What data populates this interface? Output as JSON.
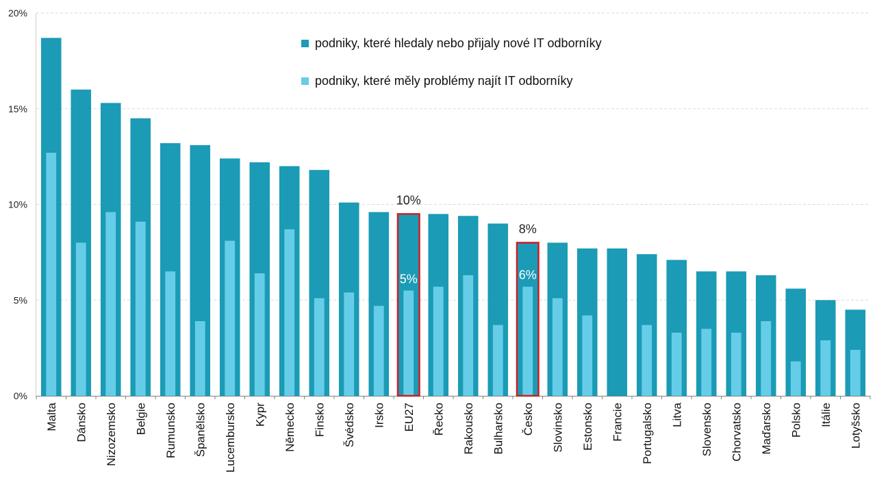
{
  "chart_data": {
    "type": "bar",
    "categories": [
      "Malta",
      "Dánsko",
      "Nizozemsko",
      "Belgie",
      "Rumunsko",
      "Španělsko",
      "Lucembursko",
      "Kypr",
      "Německo",
      "Finsko",
      "Švédsko",
      "Irsko",
      "EU27",
      "Řecko",
      "Rakousko",
      "Bulharsko",
      "Česko",
      "Slovinsko",
      "Estonsko",
      "Francie",
      "Portugalsko",
      "Litva",
      "Slovensko",
      "Chorvatsko",
      "Maďarsko",
      "Polsko",
      "Itálie",
      "Lotyšsko"
    ],
    "series": [
      {
        "name": "podniky, které hledaly nebo přijaly nové IT odborníky",
        "color": "#1b9bb5",
        "values": [
          18.7,
          16.0,
          15.3,
          14.5,
          13.2,
          13.1,
          12.4,
          12.2,
          12.0,
          11.8,
          10.1,
          9.6,
          9.5,
          9.5,
          9.4,
          9.0,
          8.0,
          8.0,
          7.7,
          7.7,
          7.4,
          7.1,
          6.5,
          6.5,
          6.3,
          5.6,
          5.0,
          4.5
        ]
      },
      {
        "name": "podniky, které měly problémy najít IT odborníky",
        "color": "#66cde9",
        "values": [
          12.7,
          8.0,
          9.6,
          9.1,
          6.5,
          3.9,
          8.1,
          6.4,
          8.7,
          5.1,
          5.4,
          4.7,
          5.5,
          5.7,
          6.3,
          3.7,
          5.7,
          5.1,
          4.2,
          null,
          3.7,
          3.3,
          3.5,
          3.3,
          3.9,
          1.8,
          2.9,
          2.4
        ]
      }
    ],
    "ylim": [
      0,
      20
    ],
    "yticks": [
      0,
      5,
      10,
      15,
      20
    ],
    "ytick_labels": [
      "0%",
      "5%",
      "10%",
      "15%",
      "20%"
    ],
    "grid": "horizontal dashed",
    "legend_position": "top-center",
    "highlighted": [
      "EU27",
      "Česko"
    ],
    "highlight_color": "#cc1f26",
    "annotations": [
      {
        "category": "EU27",
        "top_label": "10%",
        "inner_label": "5%"
      },
      {
        "category": "Česko",
        "top_label": "8%",
        "inner_label": "6%"
      }
    ]
  }
}
